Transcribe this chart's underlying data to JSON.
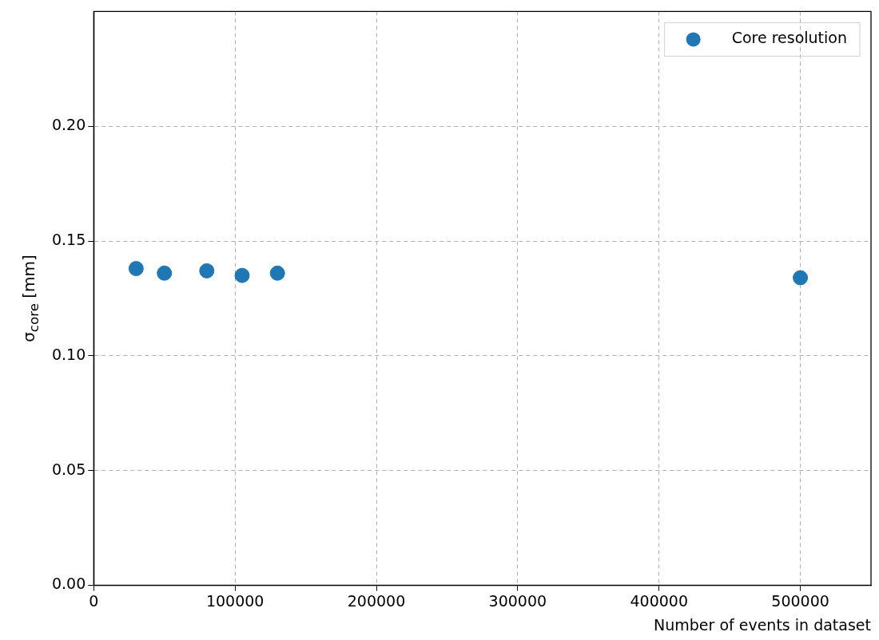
{
  "chart_data": {
    "type": "scatter",
    "xlabel": "Number of events in dataset",
    "ylabel": "σ$_{core}$ [mm]",
    "series": [
      {
        "name": "Core resolution",
        "color": "#1f77b4",
        "x": [
          30000,
          50000,
          80000,
          105000,
          130000,
          500000
        ],
        "values": [
          0.138,
          0.136,
          0.137,
          0.135,
          0.136,
          0.134
        ]
      }
    ],
    "xlim": [
      0,
      550000
    ],
    "xticks": [
      0,
      100000,
      200000,
      300000,
      400000,
      500000
    ],
    "ylim": [
      0,
      0.25
    ],
    "yticks": [
      {
        "value": 0,
        "label": "0.00"
      },
      {
        "value": 0.05,
        "label": "0.05"
      },
      {
        "value": 0.1,
        "label": "0.10"
      },
      {
        "value": 0.15,
        "label": "0.15"
      },
      {
        "value": 0.2,
        "label": "0.20"
      }
    ],
    "grid": true,
    "legend": "top right",
    "marker": "circle"
  }
}
